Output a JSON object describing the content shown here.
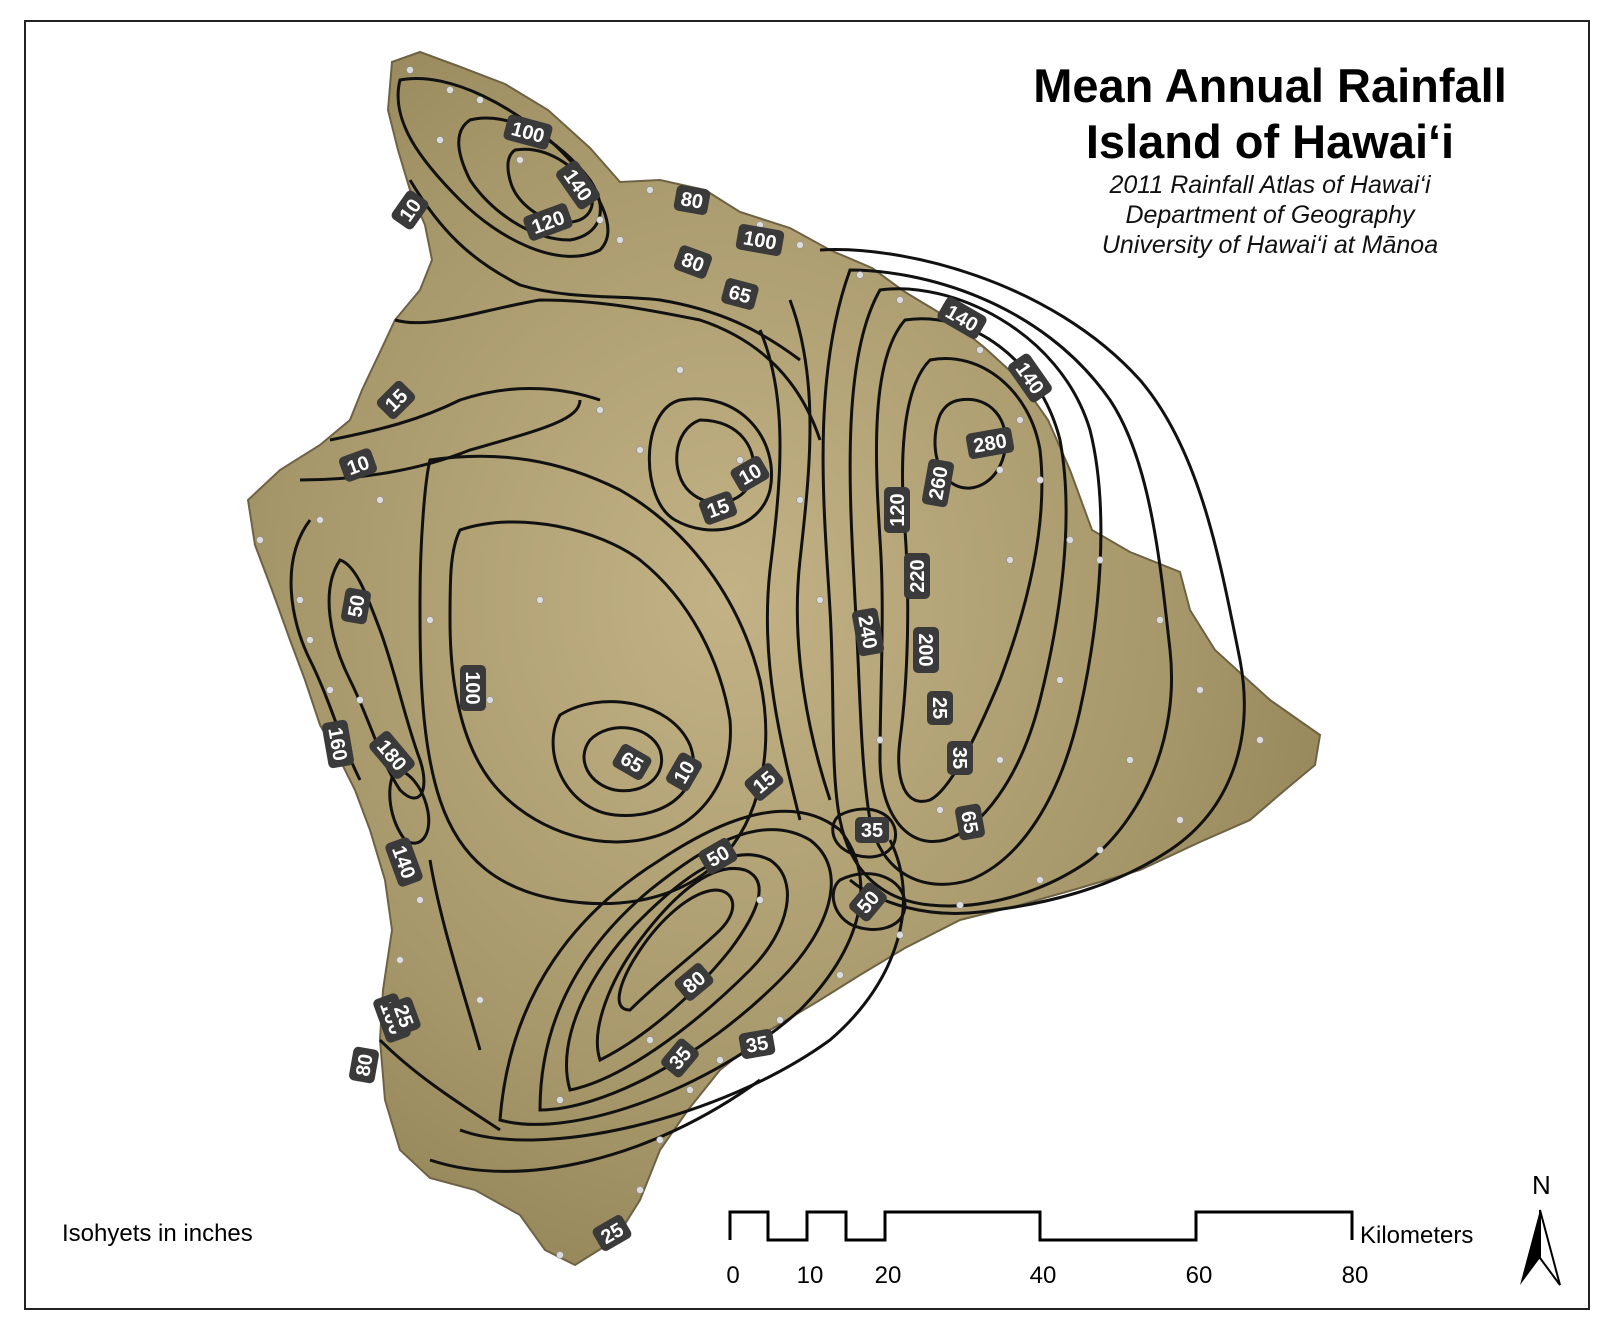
{
  "title": {
    "line1": "Mean Annual Rainfall",
    "line2": "Island of Hawai‘i",
    "subtitle1": "2011 Rainfall Atlas of Hawai‘i",
    "subtitle2": "Department of Geography",
    "subtitle3": "University of Hawai‘i at Mānoa"
  },
  "legend": {
    "note": "Isohyets in inches"
  },
  "scale_bar": {
    "unit_label": "Kilometers",
    "ticks": [
      "0",
      "10",
      "20",
      "40",
      "60",
      "80"
    ]
  },
  "north_arrow": {
    "label": "N",
    "icon": "north-arrow-icon"
  },
  "isohyet_labels": [
    "100",
    "140",
    "120",
    "10",
    "80",
    "100",
    "80",
    "65",
    "140",
    "140",
    "280",
    "10",
    "15",
    "10",
    "15",
    "260",
    "120",
    "50",
    "220",
    "200",
    "240",
    "100",
    "25",
    "160",
    "35",
    "180",
    "65",
    "10",
    "15",
    "35",
    "65",
    "140",
    "50",
    "50",
    "80",
    "100",
    "35",
    "35",
    "80",
    "25",
    "25"
  ],
  "colors": {
    "land": "#a39467",
    "contour": "#111111",
    "label_bg": "#3a3a3a",
    "label_text": "#ffffff",
    "station": "#d9d9d9"
  }
}
